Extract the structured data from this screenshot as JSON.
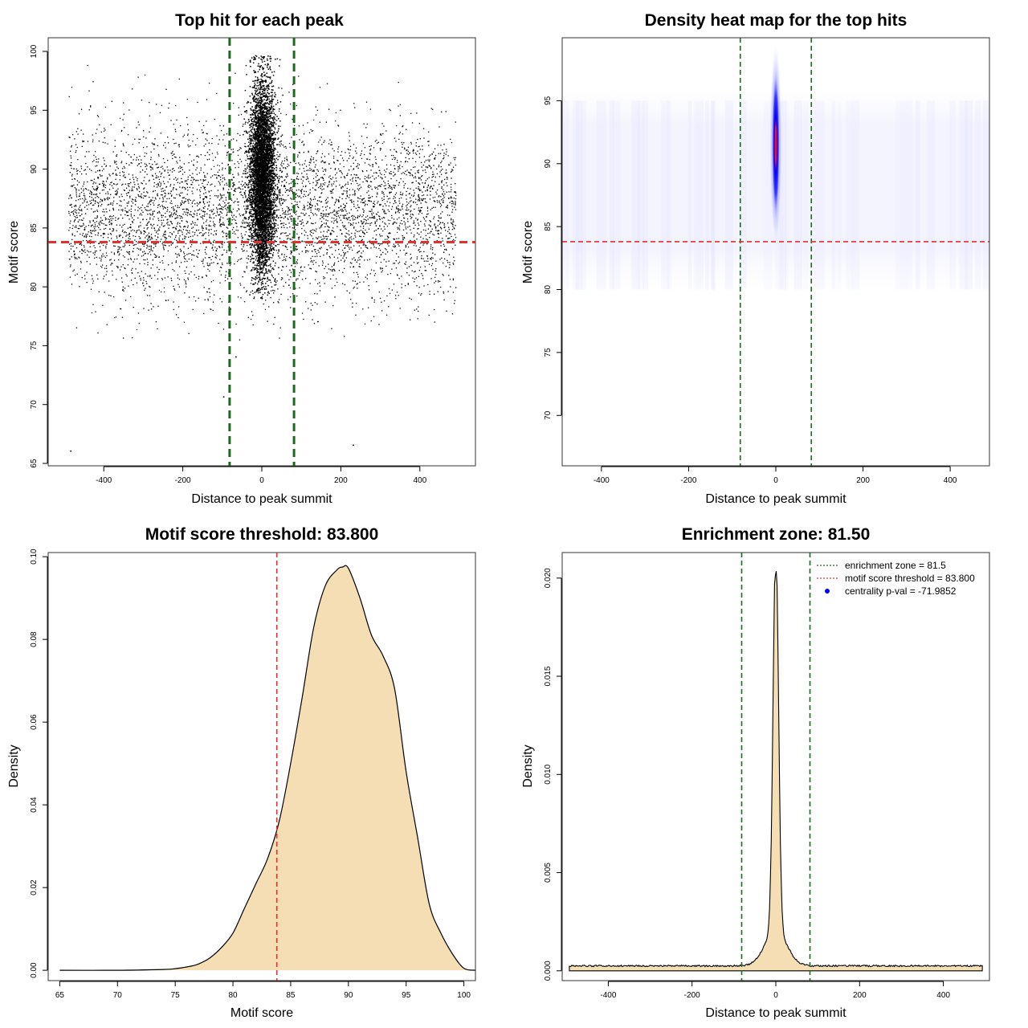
{
  "colors": {
    "points": "#000000",
    "zone_line": "#1a6b1a",
    "threshold_line": "#e03030",
    "density_fill": "#f5deb3",
    "heat_low": "#ffffff",
    "heat_mid": "#0000ff",
    "heat_high": "#ff0000",
    "legend_point": "#0000ff"
  },
  "chart_data": [
    {
      "type": "scatter",
      "title": "Top hit for each peak",
      "xlabel": "Distance to peak summit",
      "ylabel": "Motif score",
      "xlim": [
        -500,
        500
      ],
      "ylim": [
        65,
        100
      ],
      "xticks": [
        -400,
        -200,
        0,
        200,
        400
      ],
      "yticks": [
        65,
        70,
        75,
        80,
        85,
        90,
        95,
        100
      ],
      "background": {
        "x_range": [
          -490,
          490
        ],
        "mean": 86.5,
        "sd": 3.6,
        "count": 5200
      },
      "central": {
        "x_center": 0,
        "x_sd": 16,
        "mean": 89.5,
        "sd": 4.0,
        "count": 5200
      },
      "outliers": [
        {
          "x": -485,
          "y": 66.1
        },
        {
          "x": -98,
          "y": 70.7
        },
        {
          "x": 230,
          "y": 66.6
        },
        {
          "x": -67,
          "y": 74.1
        }
      ],
      "vlines": [
        -81.5,
        81.5
      ],
      "hline": 83.8
    },
    {
      "type": "heatmap",
      "title": "Density heat map for the top hits",
      "xlabel": "Distance to peak summit",
      "ylabel": "Motif score",
      "xlim": [
        -490,
        490
      ],
      "ylim": [
        66,
        100
      ],
      "xticks": [
        -400,
        -200,
        0,
        200,
        400
      ],
      "yticks": [
        70,
        75,
        80,
        85,
        90,
        95
      ],
      "peak": {
        "x": 0,
        "y": 91.5,
        "x_sd": 6,
        "y_sd": 3.2
      },
      "vlines": [
        -81.5,
        81.5
      ],
      "hline": 83.8
    },
    {
      "type": "area",
      "title": "Motif score threshold: 83.800",
      "xlabel": "Motif score",
      "ylabel": "Density",
      "xlim": [
        64,
        101
      ],
      "ylim": [
        -0.0025,
        0.101
      ],
      "xticks": [
        65,
        70,
        75,
        80,
        85,
        90,
        95,
        100
      ],
      "yticks": [
        0.0,
        0.02,
        0.04,
        0.06,
        0.08,
        0.1
      ],
      "ytick_labels": [
        "0.00",
        "0.02",
        "0.04",
        "0.06",
        "0.08",
        "0.10"
      ],
      "x": [
        65,
        70,
        74,
        75,
        76,
        77,
        78,
        79,
        80,
        81,
        82,
        83,
        84,
        85,
        86,
        87,
        88,
        89,
        89.5,
        90,
        91,
        92,
        93,
        94,
        95,
        96,
        97,
        98,
        99,
        100,
        101
      ],
      "y": [
        0.0,
        0.0,
        0.0002,
        0.0004,
        0.0008,
        0.0015,
        0.003,
        0.0055,
        0.009,
        0.015,
        0.021,
        0.027,
        0.036,
        0.05,
        0.066,
        0.083,
        0.093,
        0.0968,
        0.0975,
        0.0972,
        0.09,
        0.081,
        0.076,
        0.068,
        0.048,
        0.032,
        0.016,
        0.009,
        0.004,
        0.0005,
        0.0
      ],
      "vline": 83.8
    },
    {
      "type": "area",
      "title": "Enrichment zone: 81.50",
      "xlabel": "Distance to peak summit",
      "ylabel": "Density",
      "xlim": [
        -510,
        510
      ],
      "ylim": [
        -0.0005,
        0.0213
      ],
      "xticks": [
        -400,
        -200,
        0,
        200,
        400
      ],
      "yticks": [
        0.0,
        0.005,
        0.01,
        0.015,
        0.02
      ],
      "ytick_labels": [
        "0.000",
        "0.005",
        "0.010",
        "0.015",
        "0.020"
      ],
      "baseline": 0.00025,
      "peak_amp": 0.0197,
      "peak_sd": 6.5,
      "shoulder_amp": 0.0018,
      "shoulder_sd": 26,
      "x_range": [
        -493,
        493
      ],
      "vlines": [
        -81.5,
        81.5
      ],
      "legend": [
        {
          "label": "enrichment zone = 81.5",
          "kind": "dotted",
          "color": "#1a6b1a"
        },
        {
          "label": "motif score threshold = 83.800",
          "kind": "dotted",
          "color": "#e03030"
        },
        {
          "label": "centrality p-val = -71.9852",
          "kind": "point",
          "color": "#0000ff"
        }
      ]
    }
  ]
}
